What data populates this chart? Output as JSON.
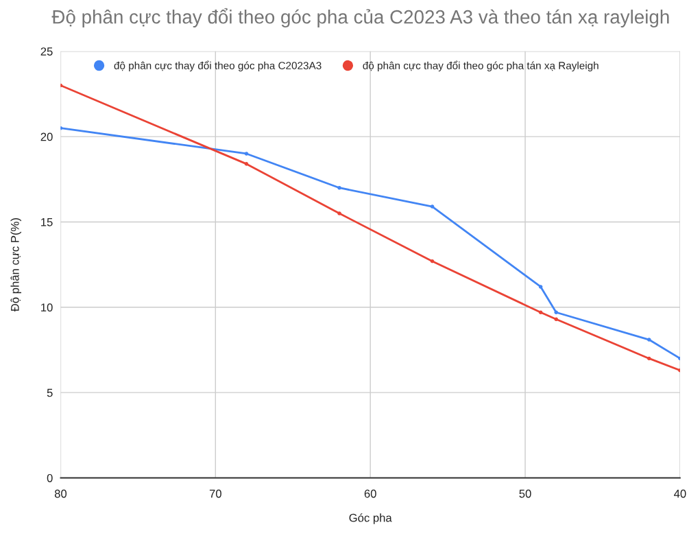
{
  "chart_data": {
    "type": "line",
    "title": "Độ phân cực thay đổi theo góc pha của C2023 A3 và theo tán xạ rayleigh",
    "xlabel": "Góc pha",
    "ylabel": "Độ phân cực P(%)",
    "x": [
      80,
      68,
      62,
      56,
      49,
      48,
      42,
      40
    ],
    "series": [
      {
        "name": "độ phân cực thay đổi theo góc pha C2023A3",
        "color": "#4285f4",
        "values": [
          20.5,
          19.0,
          17.0,
          15.9,
          11.2,
          9.7,
          8.1,
          7.0
        ]
      },
      {
        "name": "độ phân cực thay đổi theo góc pha tán xạ Rayleigh",
        "color": "#ea4335",
        "values": [
          23.0,
          18.4,
          15.5,
          12.7,
          9.7,
          9.3,
          7.0,
          6.3
        ]
      }
    ],
    "xlim": [
      80,
      40
    ],
    "xticks": [
      80,
      70,
      60,
      50,
      40
    ],
    "ylim": [
      0,
      25
    ],
    "yticks": [
      0,
      5,
      10,
      15,
      20,
      25
    ],
    "grid": true,
    "legend": "top",
    "marker": "circle",
    "line_style": "solid"
  }
}
